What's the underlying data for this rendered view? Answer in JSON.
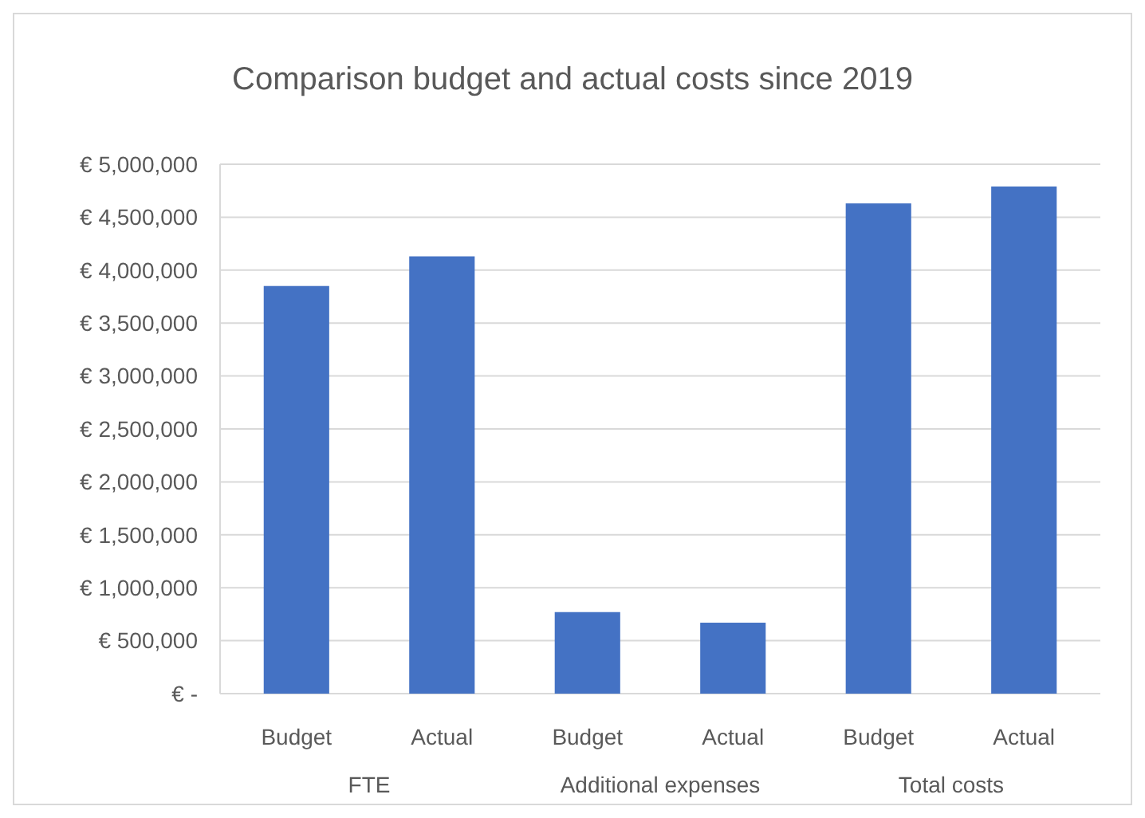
{
  "chart_data": {
    "type": "bar",
    "title": "Comparison budget and actual costs since 2019",
    "categories": [
      "Budget",
      "Actual",
      "Budget",
      "Actual",
      "Budget",
      "Actual"
    ],
    "values": [
      3850000,
      4130000,
      770000,
      670000,
      4630000,
      4790000
    ],
    "color": "#4472c4",
    "ylim": [
      0,
      5000000
    ],
    "yticks": [
      {
        "value": 0,
        "label": "€ -"
      },
      {
        "value": 500000,
        "label": "€ 500,000"
      },
      {
        "value": 1000000,
        "label": "€ 1,000,000"
      },
      {
        "value": 1500000,
        "label": "€ 1,500,000"
      },
      {
        "value": 2000000,
        "label": "€ 2,000,000"
      },
      {
        "value": 2500000,
        "label": "€ 2,500,000"
      },
      {
        "value": 3000000,
        "label": "€ 3,000,000"
      },
      {
        "value": 3500000,
        "label": "€ 3,500,000"
      },
      {
        "value": 4000000,
        "label": "€ 4,000,000"
      },
      {
        "value": 4500000,
        "label": "€ 4,500,000"
      },
      {
        "value": 5000000,
        "label": "€ 5,000,000"
      }
    ],
    "grid": "y",
    "annotations": [
      "FTE",
      "Additional expenses",
      "Total costs"
    ]
  }
}
